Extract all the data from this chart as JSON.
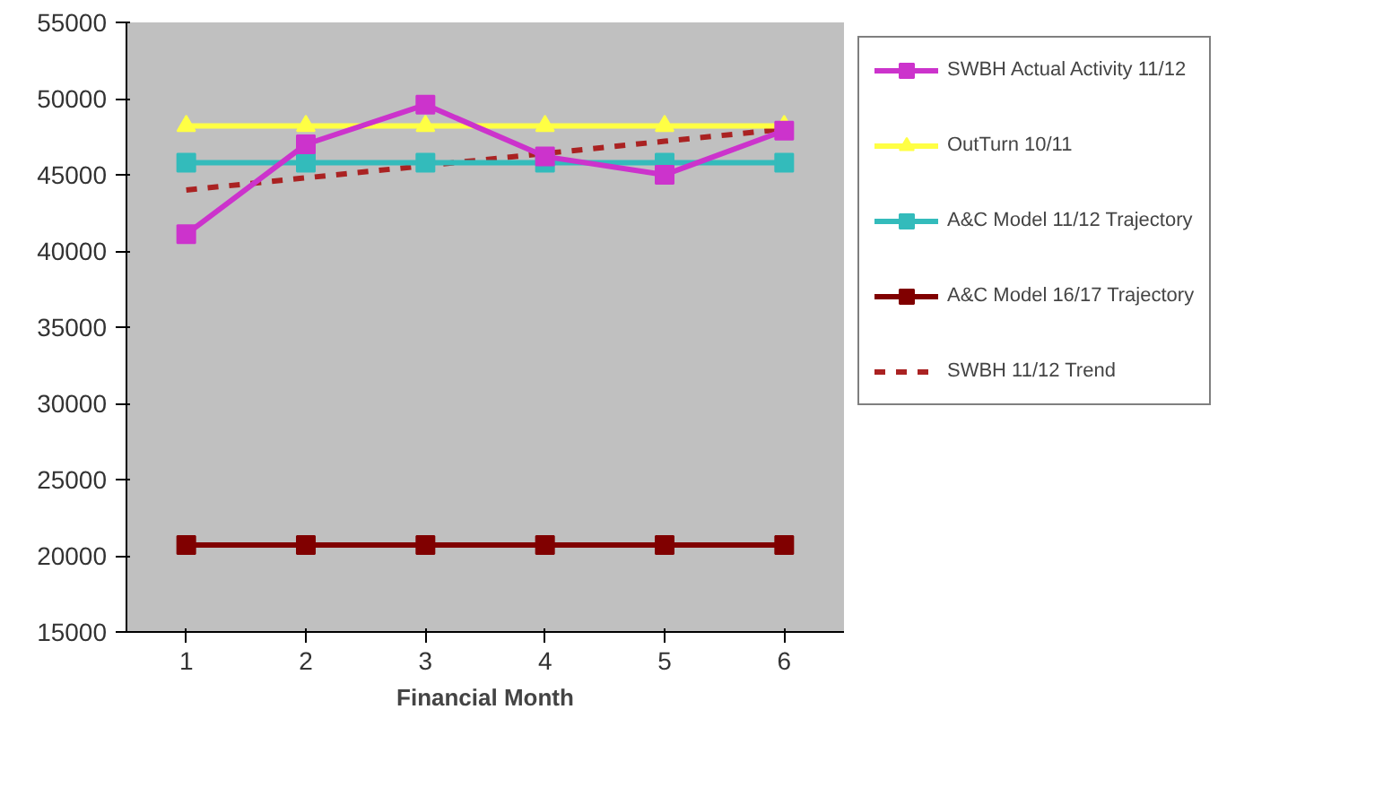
{
  "chart_data": {
    "type": "line",
    "xlabel": "Financial Month",
    "categories": [
      "1",
      "2",
      "3",
      "4",
      "5",
      "6"
    ],
    "ylim": [
      15000,
      55000
    ],
    "yticks": [
      15000,
      20000,
      25000,
      30000,
      35000,
      40000,
      45000,
      50000,
      55000
    ],
    "grid": false,
    "legend": "right",
    "series": [
      {
        "name": "SWBH Actual Activity 11/12",
        "color": "#cc33cc",
        "marker": "square",
        "values": [
          41100,
          47000,
          49600,
          46200,
          45000,
          47900
        ]
      },
      {
        "name": "OutTurn 10/11",
        "color": "#ffff44",
        "marker": "triangle",
        "values": [
          48200,
          48200,
          48200,
          48200,
          48200,
          48200
        ]
      },
      {
        "name": "A&C Model 11/12 Trajectory",
        "color": "#33bbbb",
        "marker": "square",
        "values": [
          45800,
          45800,
          45800,
          45800,
          45800,
          45800
        ]
      },
      {
        "name": "A&C Model 16/17 Trajectory",
        "color": "#800000",
        "marker": "square",
        "values": [
          20700,
          20700,
          20700,
          20700,
          20700,
          20700
        ]
      },
      {
        "name": "SWBH 11/12 Trend",
        "color": "#aa2222",
        "marker": "none",
        "line_style": "dashed",
        "values": [
          44000,
          44800,
          45600,
          46400,
          47200,
          48000
        ]
      }
    ]
  }
}
